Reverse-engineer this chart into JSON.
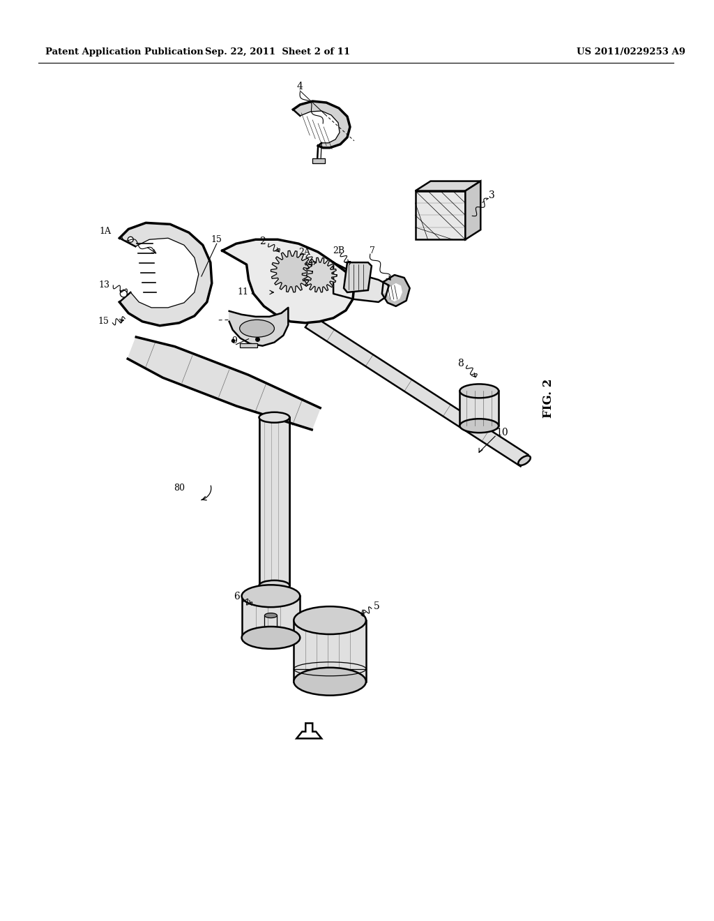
{
  "bg_color": "#ffffff",
  "header_left": "Patent Application Publication",
  "header_center": "Sep. 22, 2011  Sheet 2 of 11",
  "header_right": "US 2011/0229253 A9",
  "figure_label": "FIG. 2",
  "line_color": "#000000",
  "lw_main": 1.8,
  "lw_thick": 2.5,
  "lw_thin": 0.9
}
